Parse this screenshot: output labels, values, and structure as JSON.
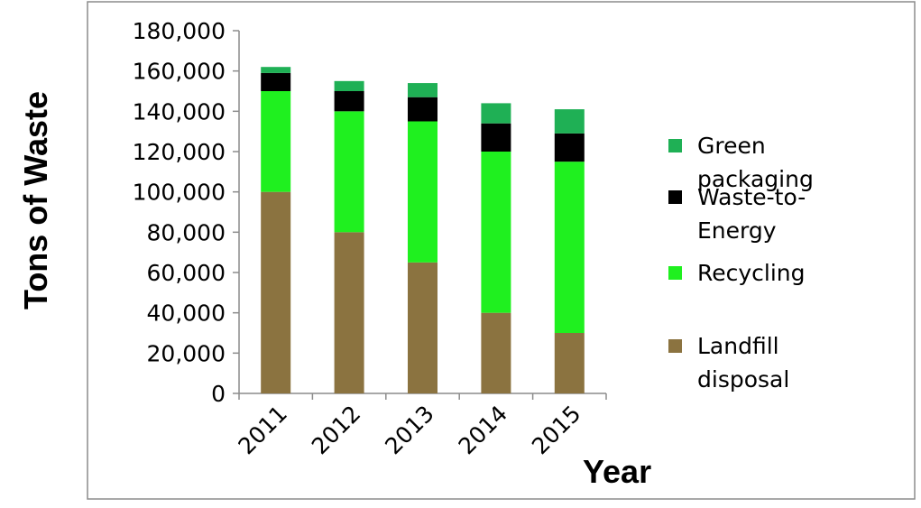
{
  "chart_data": {
    "type": "bar",
    "stacked": true,
    "title": "",
    "xlabel": "Year",
    "ylabel": "Tons of Waste",
    "categories": [
      "2011",
      "2012",
      "2013",
      "2014",
      "2015"
    ],
    "ylim": [
      0,
      180000
    ],
    "yticks": [
      {
        "value": 0,
        "label": "0"
      },
      {
        "value": 20000,
        "label": "20,000"
      },
      {
        "value": 40000,
        "label": "40,000"
      },
      {
        "value": 60000,
        "label": "60,000"
      },
      {
        "value": 80000,
        "label": "80,000"
      },
      {
        "value": 100000,
        "label": "100,000"
      },
      {
        "value": 120000,
        "label": "120,000"
      },
      {
        "value": 140000,
        "label": "140,000"
      },
      {
        "value": 160000,
        "label": "160,000"
      },
      {
        "value": 180000,
        "label": "180,000"
      }
    ],
    "grid": false,
    "legend_position": "right",
    "series": [
      {
        "key": "landfill",
        "name_lines": [
          "Landfill",
          "disposal"
        ],
        "color": "#8b7340",
        "values": [
          100000,
          80000,
          65000,
          40000,
          30000
        ]
      },
      {
        "key": "recycling",
        "name_lines": [
          "Recycling"
        ],
        "color": "#1ff01f",
        "values": [
          50000,
          60000,
          70000,
          80000,
          85000
        ]
      },
      {
        "key": "wte",
        "name_lines": [
          "Waste-to-",
          "Energy"
        ],
        "color": "#000000",
        "values": [
          9000,
          10000,
          12000,
          14000,
          14000
        ]
      },
      {
        "key": "green",
        "name_lines": [
          "Green",
          "packaging"
        ],
        "color": "#1fb055",
        "values": [
          3000,
          5000,
          7000,
          10000,
          12000
        ]
      }
    ]
  }
}
